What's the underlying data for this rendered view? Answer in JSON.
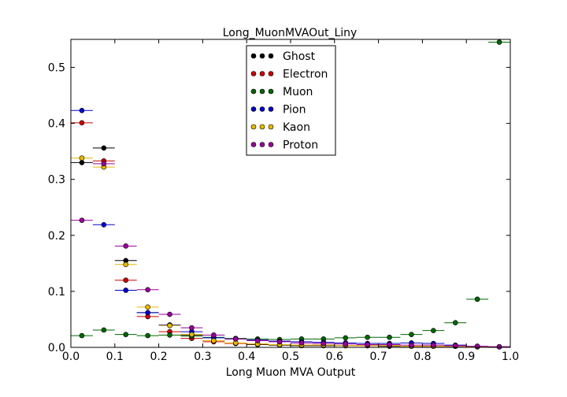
{
  "chart_data": {
    "type": "scatter",
    "title": "Long_MuonMVAOut_Liny",
    "xlabel": "Long Muon MVA Output",
    "ylabel": "",
    "xlim": [
      0.0,
      1.0
    ],
    "ylim": [
      0.0,
      0.55
    ],
    "x_ticks": [
      "0.0",
      "0.1",
      "0.2",
      "0.3",
      "0.4",
      "0.5",
      "0.6",
      "0.7",
      "0.8",
      "0.9",
      "1.0"
    ],
    "y_ticks": [
      "0.0",
      "0.1",
      "0.2",
      "0.3",
      "0.4",
      "0.5"
    ],
    "grid": false,
    "legend_position": "top-center",
    "bin_centers": [
      0.025,
      0.075,
      0.125,
      0.175,
      0.225,
      0.275,
      0.325,
      0.375,
      0.425,
      0.475,
      0.525,
      0.575,
      0.625,
      0.675,
      0.725,
      0.775,
      0.825,
      0.875,
      0.925,
      0.975
    ],
    "x_error": 0.025,
    "series": [
      {
        "name": "Ghost",
        "color": "#000000",
        "values": [
          0.33,
          0.356,
          0.155,
          0.062,
          0.04,
          0.022,
          0.012,
          0.007,
          0.005,
          0.004,
          0.003,
          0.003,
          0.003,
          0.003,
          0.002,
          0.002,
          0.002,
          0.002,
          0.001,
          0.001
        ]
      },
      {
        "name": "Electron",
        "color": "#cc0000",
        "values": [
          0.401,
          0.333,
          0.12,
          0.055,
          0.028,
          0.016,
          0.01,
          0.007,
          0.006,
          0.005,
          0.004,
          0.004,
          0.003,
          0.003,
          0.003,
          0.002,
          0.002,
          0.002,
          0.001,
          0.001
        ]
      },
      {
        "name": "Muon",
        "color": "#006600",
        "values": [
          0.021,
          0.031,
          0.023,
          0.021,
          0.022,
          0.02,
          0.018,
          0.016,
          0.015,
          0.014,
          0.015,
          0.015,
          0.017,
          0.018,
          0.018,
          0.023,
          0.03,
          0.044,
          0.086,
          0.545
        ]
      },
      {
        "name": "Pion",
        "color": "#0000cc",
        "values": [
          0.423,
          0.219,
          0.102,
          0.062,
          0.04,
          0.028,
          0.017,
          0.015,
          0.013,
          0.011,
          0.01,
          0.009,
          0.008,
          0.007,
          0.007,
          0.008,
          0.007,
          0.004,
          0.002,
          0.001
        ]
      },
      {
        "name": "Kaon",
        "color": "#e6b800",
        "values": [
          0.338,
          0.322,
          0.148,
          0.072,
          0.039,
          0.023,
          0.012,
          0.008,
          0.006,
          0.005,
          0.004,
          0.004,
          0.003,
          0.003,
          0.003,
          0.002,
          0.002,
          0.002,
          0.001,
          0.001
        ]
      },
      {
        "name": "Proton",
        "color": "#990099",
        "values": [
          0.227,
          0.328,
          0.181,
          0.103,
          0.059,
          0.035,
          0.022,
          0.015,
          0.012,
          0.01,
          0.008,
          0.007,
          0.006,
          0.005,
          0.005,
          0.004,
          0.004,
          0.003,
          0.002,
          0.001
        ]
      }
    ]
  }
}
